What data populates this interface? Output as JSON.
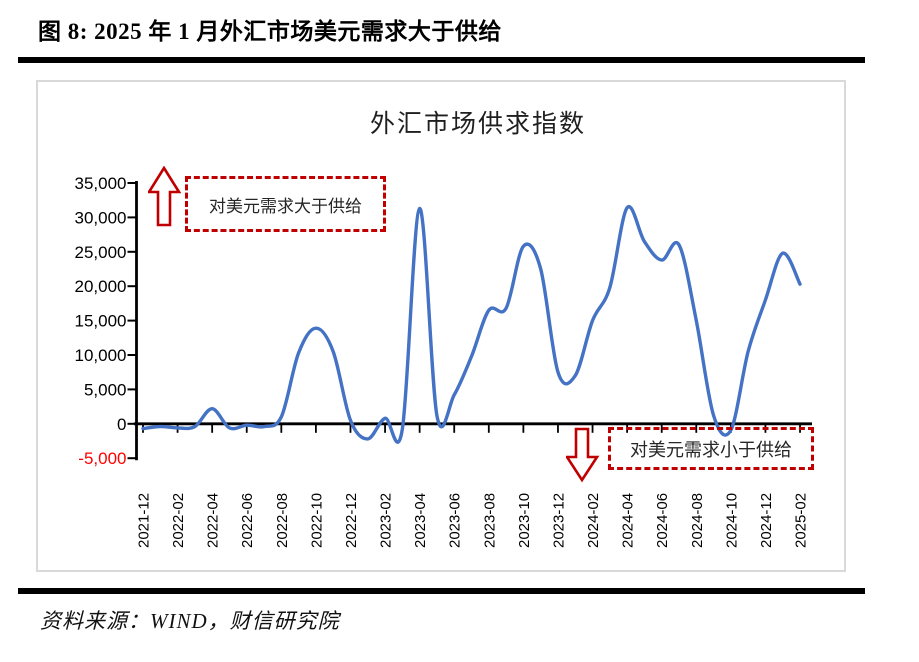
{
  "page": {
    "title": "图 8: 2025 年 1 月外汇市场美元需求大于供给",
    "source": "资料来源：WIND，财信研究院"
  },
  "chart": {
    "title": "外汇市场供求指数",
    "annotation_top": "对美元需求大于供给",
    "annotation_bottom": "对美元需求小于供给"
  },
  "chart_data": {
    "type": "line",
    "title": "外汇市场供求指数",
    "legend": "none",
    "grid": false,
    "line_color": "#4472c4",
    "axis_color": "#000000",
    "annotation_color": "#c00000",
    "negative_label_color": "#ff0000",
    "ylim": [
      -5000,
      35000
    ],
    "y_ticks": [
      35000,
      30000,
      25000,
      20000,
      15000,
      10000,
      5000,
      0,
      -5000
    ],
    "y_tick_labels": [
      "35,000",
      "30,000",
      "25,000",
      "20,000",
      "15,000",
      "10,000",
      "5,000",
      "0",
      "-5,000"
    ],
    "x_tick_labels": [
      "2021-12",
      "2022-02",
      "2022-04",
      "2022-06",
      "2022-08",
      "2022-10",
      "2022-12",
      "2023-02",
      "2023-04",
      "2023-06",
      "2023-08",
      "2023-10",
      "2023-12",
      "2024-02",
      "2024-04",
      "2024-06",
      "2024-08",
      "2024-10",
      "2024-12",
      "2025-02"
    ],
    "x_tick_step": 2,
    "x": [
      "2021-12",
      "2022-01",
      "2022-02",
      "2022-03",
      "2022-04",
      "2022-05",
      "2022-06",
      "2022-07",
      "2022-08",
      "2022-09",
      "2022-10",
      "2022-11",
      "2022-12",
      "2023-01",
      "2023-02",
      "2023-03",
      "2023-04",
      "2023-05",
      "2023-06",
      "2023-07",
      "2023-08",
      "2023-09",
      "2023-10",
      "2023-11",
      "2023-12",
      "2024-01",
      "2024-02",
      "2024-03",
      "2024-04",
      "2024-05",
      "2024-06",
      "2024-07",
      "2024-08",
      "2024-09",
      "2024-10",
      "2024-11",
      "2024-12",
      "2025-01",
      "2025-02"
    ],
    "values": [
      -700,
      -400,
      -600,
      -400,
      2200,
      -600,
      -200,
      -400,
      1000,
      10300,
      13900,
      10500,
      500,
      -2200,
      800,
      -800,
      31300,
      1200,
      4200,
      9800,
      16500,
      16800,
      25800,
      22500,
      7500,
      7000,
      15000,
      19800,
      31400,
      26500,
      23800,
      26000,
      15000,
      1200,
      -900,
      10500,
      18000,
      24800,
      20300
    ],
    "annotations": [
      {
        "text": "对美元需求大于供给",
        "arrow": "up"
      },
      {
        "text": "对美元需求小于供给",
        "arrow": "down"
      }
    ]
  }
}
